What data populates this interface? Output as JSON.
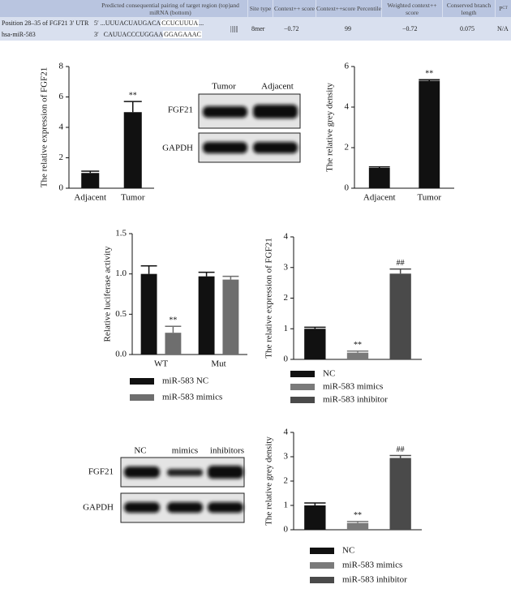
{
  "table": {
    "headers": [
      "Predicted consequential pairing of target region (top)and miRNA (bottom)",
      "Site type",
      "Context++ score",
      "Context++score Percentile",
      "Weighted context++ score",
      "Conserved branch length"
    ],
    "pct_header": {
      "main": "P",
      "sub": "CT"
    },
    "rows": [
      {
        "label": "Position 28–35 of FGF21 3′ UTR",
        "prime": "5′",
        "seq": "...UUUACUAUGACA",
        "seed": "CCUCUUUA",
        "tail": "..."
      },
      {
        "label": "hsa-miR-583",
        "prime": "3′",
        "seq": "CAUUACCCUGGAA",
        "seed": "GGAGAAAC"
      }
    ],
    "pairing": "||||||",
    "values": [
      "8mer",
      "−0.72",
      "99",
      "−0.72",
      "0.075",
      "N/A"
    ]
  },
  "blots": [
    {
      "lanes": [
        "Tumor",
        "Adjacent"
      ],
      "rows": [
        "FGF21",
        "GAPDH"
      ]
    },
    {
      "lanes": [
        "NC",
        "mimics",
        "inhibitors"
      ],
      "rows": [
        "FGF21",
        "GAPDH"
      ]
    }
  ],
  "chart_data": [
    {
      "type": "bar",
      "ylabel": "The relative expression of FGF21",
      "ylim": [
        0,
        8
      ],
      "yticks": [
        0,
        2,
        4,
        6,
        8
      ],
      "categories": [
        "Adjacent",
        "Tumor"
      ],
      "series": [
        {
          "color": "#111111",
          "values": [
            1.0,
            5.0
          ],
          "errors": [
            0.12,
            0.7
          ],
          "annotations": [
            null,
            "**"
          ]
        }
      ]
    },
    {
      "type": "bar",
      "ylabel": "The relative grey density",
      "ylim": [
        0,
        6
      ],
      "yticks": [
        0,
        2,
        4,
        6
      ],
      "categories": [
        "Adjacent",
        "Tumor"
      ],
      "series": [
        {
          "color": "#111111",
          "values": [
            1.0,
            5.3
          ],
          "errors": [
            0.05,
            0.05
          ],
          "annotations": [
            null,
            "**"
          ]
        }
      ]
    },
    {
      "type": "bar",
      "ylabel": "Relative luciferase activity",
      "ylim": [
        0,
        1.5
      ],
      "yticks": [
        {
          "value": 0,
          "label": "0.0"
        },
        0.5,
        {
          "value": 1,
          "label": "1.0"
        },
        1.5
      ],
      "categories": [
        "WT",
        "Mut"
      ],
      "legend": "bottom",
      "series": [
        {
          "name": "miR-583 NC",
          "color": "#111111",
          "values": [
            1.0,
            0.97
          ],
          "errors": [
            0.1,
            0.05
          ],
          "annotations": [
            null,
            null
          ]
        },
        {
          "name": "miR-583 mimics",
          "color": "#6e6e6e",
          "values": [
            0.27,
            0.93
          ],
          "errors": [
            0.08,
            0.04
          ],
          "annotations": [
            "**",
            null
          ]
        }
      ]
    },
    {
      "type": "bar",
      "ylabel": "The relative expression of FGF21",
      "ylim": [
        0,
        4
      ],
      "yticks": [
        0,
        1,
        2,
        3,
        4
      ],
      "legend": "bottom",
      "series": [
        {
          "name": "NC",
          "color": "#111111",
          "values": [
            1.0
          ],
          "errors": [
            0.05
          ],
          "annotations": [
            null
          ]
        },
        {
          "name": "miR-583 mimics",
          "color": "#7a7a7a",
          "values": [
            0.22
          ],
          "errors": [
            0.05
          ],
          "annotations": [
            "**"
          ]
        },
        {
          "name": "miR-583 inhibitor",
          "color": "#4a4a4a",
          "values": [
            2.8
          ],
          "errors": [
            0.15
          ],
          "annotations": [
            "##"
          ]
        }
      ]
    },
    {
      "type": "bar",
      "ylabel": "The relative grey density",
      "ylim": [
        0,
        4
      ],
      "yticks": [
        0,
        1,
        2,
        3,
        4
      ],
      "legend": "bottom",
      "series": [
        {
          "name": "NC",
          "color": "#111111",
          "values": [
            1.0
          ],
          "errors": [
            0.1
          ],
          "annotations": [
            null
          ]
        },
        {
          "name": "miR-583 mimics",
          "color": "#7a7a7a",
          "values": [
            0.28
          ],
          "errors": [
            0.06
          ],
          "annotations": [
            "**"
          ]
        },
        {
          "name": "miR-583 inhibitor",
          "color": "#4a4a4a",
          "values": [
            2.95
          ],
          "errors": [
            0.1
          ],
          "annotations": [
            "##"
          ]
        }
      ]
    }
  ]
}
